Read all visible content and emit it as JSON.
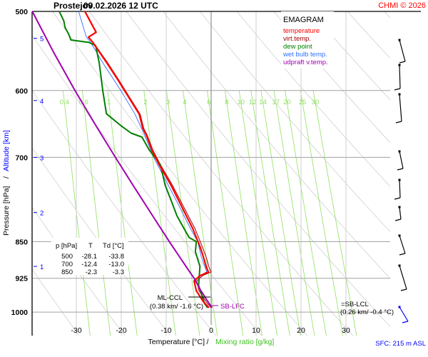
{
  "header": {
    "station": "Prostejov",
    "datetime": "09.02.2026 12 UTC",
    "copyright": "CHMI © 2026"
  },
  "colors": {
    "temperature": "#ff0000",
    "virt_temp": "#a00000",
    "dew_point": "#008000",
    "wet_bulb": "#3070ff",
    "updraft": "#a000b0",
    "mixing": "#90e060",
    "adiabat": "#d0d0d0",
    "altitude": "#0000ff"
  },
  "legend": {
    "title": "EMAGRAM",
    "items": [
      {
        "label": "temperature",
        "color": "#ff0000"
      },
      {
        "label": "virt.temp.",
        "color": "#a00000"
      },
      {
        "label": "dew point",
        "color": "#008000"
      },
      {
        "label": "wet bulb temp.",
        "color": "#3070ff"
      },
      {
        "label": "udpraft v.temp.",
        "color": "#a000b0"
      }
    ]
  },
  "table": {
    "headers": [
      "p [hPa]",
      "T",
      "Td [°C]"
    ],
    "rows": [
      [
        "500",
        "-28.1",
        "-33.8"
      ],
      [
        "700",
        "-12.4",
        "-13.0"
      ],
      [
        "850",
        "-2.3",
        "-3.3"
      ]
    ]
  },
  "annotations": {
    "ml_ccl": "ML-CCL",
    "ml_ccl_val": "(0.38 km/ -1.6 °C)",
    "sb_lfc": "SB-LFC",
    "sb_lcl": "=SB-LCL",
    "sb_lcl_val": "(0.26 km/ -0.4 °C)",
    "sfc": "SFC: 215 m ASL"
  },
  "chart_data": {
    "type": "line",
    "diagram": "emagram",
    "xlabel": "Temperature [°C]",
    "xlabel2": "Mixing ratio [g/kg]",
    "ylabel": "Pressure [hPa]",
    "ylabel2": "Altitude [km]",
    "xlim": [
      -40,
      40
    ],
    "ylim": [
      1000,
      500
    ],
    "y_scale": "log",
    "x_ticks": [
      "-30",
      "-20",
      "-10",
      "0",
      "10",
      "20",
      "30"
    ],
    "y_ticks": [
      "500",
      "600",
      "700",
      "850",
      "925",
      "1000"
    ],
    "altitude_ticks": [
      {
        "km": "5",
        "p": 532
      },
      {
        "km": "4",
        "p": 614
      },
      {
        "km": "3",
        "p": 700
      },
      {
        "km": "2",
        "p": 795
      },
      {
        "km": "1",
        "p": 900
      }
    ],
    "mixing_ratio_labels": [
      "0.4",
      "0.6",
      "1",
      "2",
      "3",
      "4",
      "6",
      "8",
      "10",
      "12",
      "14",
      "17",
      "20",
      "25",
      "30"
    ],
    "series": [
      {
        "name": "temperature",
        "p": [
          500,
          524.6,
          530.5,
          537.2,
          563,
          585,
          608.9,
          633.6,
          654.6,
          665.4,
          688,
          711.6,
          746.7,
          785,
          824.9,
          859.5,
          881.4,
          903.8,
          911.6,
          919.5,
          930.7,
          951.8,
          976.7,
          990
        ],
        "t": [
          -28.1,
          -25.6,
          -27.3,
          -26.3,
          -23.2,
          -20.8,
          -18.4,
          -16.0,
          -15.2,
          -14.4,
          -13.2,
          -11.6,
          -8.9,
          -6.5,
          -4.1,
          -2.5,
          -1.7,
          -1.0,
          -0.6,
          -2.5,
          -3.8,
          -3.3,
          -1.7,
          -0.5
        ]
      },
      {
        "name": "virt.temp.",
        "p": [
          500,
          524.6,
          530.5,
          537.2,
          563,
          585,
          608.9,
          633.6,
          654.6,
          665.4,
          688,
          711.6,
          746.7,
          785,
          824.9,
          859.5,
          881.4,
          903.8,
          911.6,
          919.5,
          930.7,
          951.8,
          976.7,
          990
        ],
        "t": [
          -28.0,
          -25.5,
          -27.2,
          -26.2,
          -23.0,
          -20.6,
          -18.2,
          -15.8,
          -15.0,
          -14.2,
          -13.0,
          -11.3,
          -8.6,
          -6.1,
          -3.6,
          -2.0,
          -1.1,
          -0.4,
          0.0,
          -1.9,
          -3.2,
          -2.7,
          -1.1,
          0.0
        ]
      },
      {
        "name": "dew point",
        "p": [
          500,
          511,
          519,
          527,
          534,
          537,
          541,
          563,
          601,
          633,
          650,
          662,
          668,
          688,
          712,
          747,
          773,
          801,
          818,
          842,
          850,
          870,
          900,
          940,
          980,
          990
        ],
        "t": [
          -33.8,
          -32.8,
          -32.5,
          -31.7,
          -31.2,
          -27.2,
          -25.7,
          -24.9,
          -24.1,
          -23.3,
          -20.2,
          -17.8,
          -15.4,
          -13.8,
          -11.3,
          -10.2,
          -8.9,
          -7.6,
          -6.5,
          -4.9,
          -3.3,
          -3.5,
          -2.5,
          -2.8,
          -1.5,
          -0.8
        ]
      },
      {
        "name": "wet bulb temp.",
        "p": [
          500,
          530,
          537,
          563,
          601,
          633,
          665,
          700,
          747,
          785,
          825,
          850,
          880,
          911,
          930,
          952,
          977,
          990
        ],
        "t": [
          -29.5,
          -27.8,
          -26.8,
          -24.1,
          -20.0,
          -17.0,
          -14.8,
          -12.8,
          -9.5,
          -7.0,
          -4.6,
          -3.0,
          -2.2,
          -1.0,
          -3.8,
          -3.2,
          -1.7,
          -0.6
        ]
      },
      {
        "name": "udpraft v.temp.",
        "p": [
          500,
          550,
          600,
          650,
          700,
          750,
          800,
          850,
          900,
          925,
          950,
          975,
          990
        ],
        "t": [
          -39.8,
          -35.0,
          -30.3,
          -25.7,
          -21.3,
          -17.1,
          -13.1,
          -9.3,
          -5.6,
          -3.8,
          -2.4,
          -0.8,
          0.2
        ]
      }
    ]
  }
}
